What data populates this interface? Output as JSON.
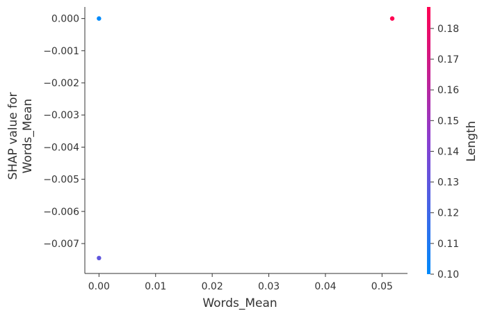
{
  "chart_data": {
    "type": "scatter",
    "title": "",
    "xlabel": "Words_Mean",
    "ylabel_lines": [
      "SHAP value for",
      "Words_Mean"
    ],
    "xlim": [
      -0.0025,
      0.0545
    ],
    "ylim": [
      -0.00793,
      0.00036
    ],
    "x_ticks": [
      0.0,
      0.01,
      0.02,
      0.03,
      0.04,
      0.05
    ],
    "x_tick_labels": [
      "0.00",
      "0.01",
      "0.02",
      "0.03",
      "0.04",
      "0.05"
    ],
    "y_ticks": [
      0.0,
      -0.001,
      -0.002,
      -0.003,
      -0.004,
      -0.005,
      -0.006,
      -0.007
    ],
    "y_tick_labels": [
      "0.000",
      "−0.001",
      "−0.002",
      "−0.003",
      "−0.004",
      "−0.005",
      "−0.006",
      "−0.007"
    ],
    "grid": false,
    "points": [
      {
        "x": 0.0,
        "y": 0.0,
        "color_value": 0.1
      },
      {
        "x": 0.0,
        "y": -0.00745,
        "color_value": 0.13
      },
      {
        "x": 0.0518,
        "y": 0.0,
        "color_value": 0.187
      }
    ],
    "colorbar": {
      "label": "Length",
      "range": [
        0.1,
        0.187
      ],
      "ticks": [
        0.1,
        0.11,
        0.12,
        0.13,
        0.14,
        0.15,
        0.16,
        0.17,
        0.18
      ],
      "tick_labels": [
        "0.10",
        "0.11",
        "0.12",
        "0.13",
        "0.14",
        "0.15",
        "0.16",
        "0.17",
        "0.18"
      ],
      "colors": [
        "#008afb",
        "#ff0052"
      ]
    },
    "axis_color": "#333333"
  }
}
